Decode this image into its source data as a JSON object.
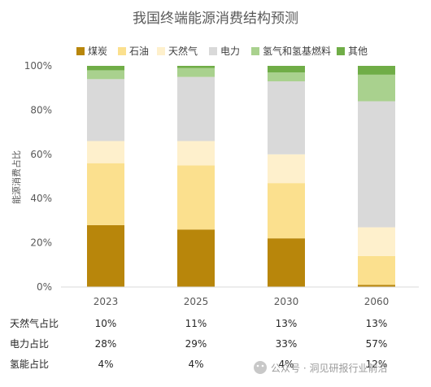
{
  "chart_data": {
    "type": "bar",
    "stacked": true,
    "title": "我国终端能源消费结构预测",
    "ylabel": "能源消费占比",
    "ylim": [
      0,
      100
    ],
    "yticks": [
      "0%",
      "20%",
      "40%",
      "60%",
      "80%",
      "100%"
    ],
    "categories": [
      "2023",
      "2025",
      "2030",
      "2060"
    ],
    "legend_position": "top",
    "grid": false,
    "series": [
      {
        "name": "煤炭",
        "color": "#B8860B",
        "values": [
          28,
          26,
          22,
          1
        ]
      },
      {
        "name": "石油",
        "color": "#FBE08E",
        "values": [
          28,
          29,
          25,
          13
        ]
      },
      {
        "name": "天然气",
        "color": "#FEF0CC",
        "values": [
          10,
          11,
          13,
          13
        ]
      },
      {
        "name": "电力",
        "color": "#D9D9D9",
        "values": [
          28,
          29,
          33,
          57
        ]
      },
      {
        "name": "氢气和氢基燃料",
        "color": "#A9D18E",
        "values": [
          4,
          4,
          4,
          12
        ]
      },
      {
        "name": "其他",
        "color": "#70AD47",
        "values": [
          2,
          1,
          3,
          4
        ]
      }
    ]
  },
  "table": {
    "rows": [
      {
        "label": "天然气占比",
        "values": [
          "10%",
          "11%",
          "13%",
          "13%"
        ]
      },
      {
        "label": "电力占比",
        "values": [
          "28%",
          "29%",
          "33%",
          "57%"
        ]
      },
      {
        "label": "氢能占比",
        "values": [
          "4%",
          "4%",
          "4%",
          "12%"
        ]
      }
    ]
  },
  "watermark": {
    "source": "公众号 · 洞见研报行业前沿"
  }
}
